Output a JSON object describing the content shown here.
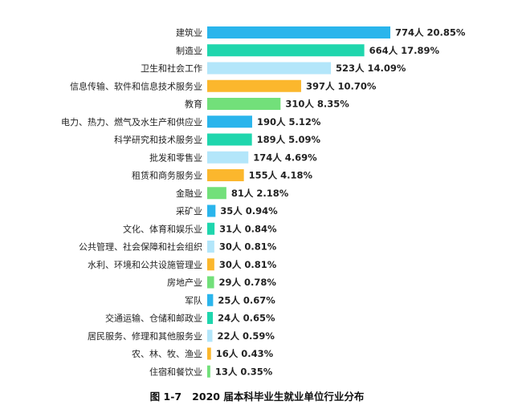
{
  "caption": {
    "figure_no": "图 1-7",
    "title": "2020 届本科毕业生就业单位行业分布"
  },
  "chart_data": {
    "type": "bar",
    "orientation": "horizontal",
    "title": "2020 届本科毕业生就业单位行业分布",
    "categories": [
      "建筑业",
      "制造业",
      "卫生和社会工作",
      "信息传输、软件和信息技术服务业",
      "教育",
      "电力、热力、燃气及水生产和供应业",
      "科学研究和技术服务业",
      "批发和零售业",
      "租赁和商务服务业",
      "金融业",
      "采矿业",
      "文化、体育和娱乐业",
      "公共管理、社会保障和社会组织",
      "水利、环境和公共设施管理业",
      "房地产业",
      "军队",
      "交通运输、仓储和邮政业",
      "居民服务、修理和其他服务业",
      "农、林、牧、渔业",
      "住宿和餐饮业"
    ],
    "values": [
      774,
      664,
      523,
      397,
      310,
      190,
      189,
      174,
      155,
      81,
      35,
      31,
      30,
      30,
      29,
      25,
      24,
      22,
      16,
      13
    ],
    "data_labels": [
      "774人 20.85%",
      "664人 17.89%",
      "523人 14.09%",
      "397人 10.70%",
      "310人 8.35%",
      "190人 5.12%",
      "189人 5.09%",
      "174人 4.69%",
      "155人 4.18%",
      "81人 2.18%",
      "35人 0.94%",
      "31人 0.84%",
      "30人 0.81%",
      "30人 0.81%",
      "29人 0.78%",
      "25人 0.67%",
      "24人 0.65%",
      "22人 0.59%",
      "16人 0.43%",
      "13人 0.35%"
    ],
    "colors": [
      "#2ab5ec",
      "#1fd6ad",
      "#b3e6fa",
      "#fbb72d",
      "#72e07a"
    ],
    "xlim": [
      0,
      774
    ],
    "grid": false,
    "legend": "none"
  }
}
